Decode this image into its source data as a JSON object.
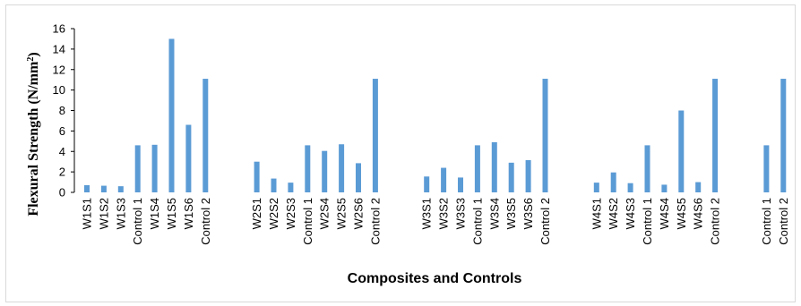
{
  "chart_data": {
    "type": "bar",
    "categories": [
      "W1S1",
      "W1S2",
      "W1S3",
      "Control 1",
      "W1S4",
      "W1S5",
      "W1S6",
      "Control 2",
      "W2S1",
      "W2S2",
      "W2S3",
      "Control 1",
      "W2S4",
      "W2S5",
      "W2S6",
      "Control 2",
      "W3S1",
      "W3S2",
      "W3S3",
      "Control 1",
      "W3S4",
      "W3S5",
      "W3S6",
      "Control 2",
      "W4S1",
      "W4S2",
      "W4S3",
      "Control 1",
      "W4S4",
      "W4S5",
      "W4S6",
      "Control 2",
      "Control 1",
      "Control 2"
    ],
    "groups": [
      8,
      8,
      8,
      8,
      2
    ],
    "values": [
      0.7,
      0.65,
      0.6,
      4.6,
      4.65,
      15.0,
      6.6,
      11.1,
      3.0,
      1.35,
      0.95,
      4.6,
      4.05,
      4.7,
      2.85,
      11.1,
      1.55,
      2.4,
      1.45,
      4.6,
      4.9,
      2.9,
      3.15,
      11.1,
      0.95,
      1.95,
      0.9,
      4.6,
      0.75,
      8.0,
      1.0,
      11.1,
      4.6,
      11.1
    ],
    "title": "",
    "xlabel": "Composites and Controls",
    "ylabel_main": "Flexural Strength (N/mm",
    "ylabel_sup": "2",
    "ylabel_end": ")",
    "ylim": [
      0,
      16
    ],
    "yticks": [
      0,
      2,
      4,
      6,
      8,
      10,
      12,
      14,
      16
    ],
    "color": "#5b9bd5",
    "grid": false,
    "legend": "none"
  }
}
